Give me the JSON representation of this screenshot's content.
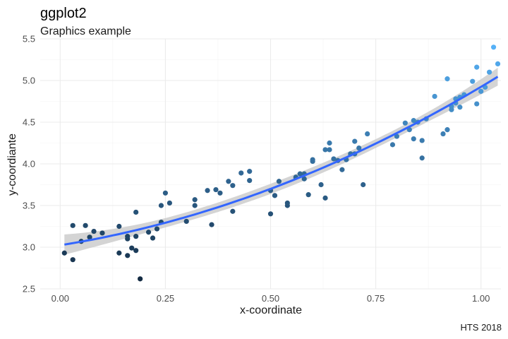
{
  "chart_data": {
    "type": "scatter",
    "title": "ggplot2",
    "subtitle": "Graphics example",
    "caption": "HTS 2018",
    "xlabel": "x-coordinate",
    "ylabel": "y-coordiante",
    "xlim": [
      -0.0475,
      1.0475
    ],
    "ylim": [
      2.5,
      5.5
    ],
    "xticks": [
      0,
      0.25,
      0.5,
      0.75,
      1
    ],
    "xtick_labels": [
      "0.00",
      "0.25",
      "0.50",
      "0.75",
      "1.00"
    ],
    "yticks": [
      2.5,
      3.0,
      3.5,
      4.0,
      4.5,
      5.0,
      5.5
    ],
    "ytick_labels": [
      "2.5",
      "3.0",
      "3.5",
      "4.0",
      "4.5",
      "5.0",
      "5.5"
    ],
    "grid": true,
    "legend": "none",
    "point_color_low": "#132B43",
    "point_color_high": "#56B1F7",
    "smooth_color": "#3366FF",
    "ribbon_color": "#cccccc",
    "points": [
      [
        0.01,
        2.93
      ],
      [
        0.03,
        3.26
      ],
      [
        0.03,
        2.85
      ],
      [
        0.05,
        3.07
      ],
      [
        0.06,
        3.26
      ],
      [
        0.07,
        3.12
      ],
      [
        0.08,
        3.19
      ],
      [
        0.1,
        3.17
      ],
      [
        0.14,
        3.25
      ],
      [
        0.14,
        2.93
      ],
      [
        0.16,
        3.1
      ],
      [
        0.16,
        3.13
      ],
      [
        0.16,
        2.9
      ],
      [
        0.17,
        2.99
      ],
      [
        0.18,
        3.42
      ],
      [
        0.18,
        3.13
      ],
      [
        0.18,
        2.96
      ],
      [
        0.19,
        2.62
      ],
      [
        0.21,
        3.18
      ],
      [
        0.22,
        3.11
      ],
      [
        0.23,
        3.22
      ],
      [
        0.24,
        3.3
      ],
      [
        0.24,
        3.5
      ],
      [
        0.25,
        3.65
      ],
      [
        0.26,
        3.53
      ],
      [
        0.3,
        3.31
      ],
      [
        0.32,
        3.57
      ],
      [
        0.32,
        3.5
      ],
      [
        0.35,
        3.68
      ],
      [
        0.36,
        3.27
      ],
      [
        0.37,
        3.69
      ],
      [
        0.38,
        3.65
      ],
      [
        0.4,
        3.79
      ],
      [
        0.41,
        3.43
      ],
      [
        0.41,
        3.74
      ],
      [
        0.43,
        3.89
      ],
      [
        0.45,
        3.91
      ],
      [
        0.45,
        3.8
      ],
      [
        0.5,
        3.4
      ],
      [
        0.5,
        3.68
      ],
      [
        0.51,
        3.62
      ],
      [
        0.52,
        3.79
      ],
      [
        0.54,
        3.5
      ],
      [
        0.54,
        3.53
      ],
      [
        0.56,
        3.84
      ],
      [
        0.57,
        3.88
      ],
      [
        0.58,
        3.88
      ],
      [
        0.58,
        3.82
      ],
      [
        0.59,
        3.63
      ],
      [
        0.6,
        4.03
      ],
      [
        0.6,
        4.05
      ],
      [
        0.62,
        3.75
      ],
      [
        0.63,
        3.59
      ],
      [
        0.63,
        4.17
      ],
      [
        0.64,
        4.25
      ],
      [
        0.64,
        4.17
      ],
      [
        0.65,
        4.06
      ],
      [
        0.66,
        4.04
      ],
      [
        0.67,
        3.93
      ],
      [
        0.68,
        4.05
      ],
      [
        0.69,
        4.12
      ],
      [
        0.7,
        4.27
      ],
      [
        0.7,
        4.12
      ],
      [
        0.71,
        4.19
      ],
      [
        0.72,
        3.75
      ],
      [
        0.73,
        4.36
      ],
      [
        0.79,
        4.23
      ],
      [
        0.8,
        4.33
      ],
      [
        0.82,
        4.49
      ],
      [
        0.83,
        4.41
      ],
      [
        0.84,
        4.52
      ],
      [
        0.84,
        4.3
      ],
      [
        0.85,
        4.5
      ],
      [
        0.86,
        4.28
      ],
      [
        0.86,
        4.07
      ],
      [
        0.87,
        4.54
      ],
      [
        0.89,
        4.81
      ],
      [
        0.91,
        4.36
      ],
      [
        0.92,
        4.41
      ],
      [
        0.92,
        5.02
      ],
      [
        0.93,
        4.65
      ],
      [
        0.93,
        4.69
      ],
      [
        0.94,
        4.78
      ],
      [
        0.94,
        4.73
      ],
      [
        0.95,
        4.8
      ],
      [
        0.95,
        4.68
      ],
      [
        0.96,
        4.83
      ],
      [
        0.98,
        4.99
      ],
      [
        0.99,
        5.16
      ],
      [
        0.99,
        4.72
      ],
      [
        1.0,
        4.87
      ],
      [
        1.01,
        4.92
      ],
      [
        1.02,
        5.1
      ],
      [
        1.03,
        5.4
      ],
      [
        1.04,
        5.2
      ]
    ]
  }
}
